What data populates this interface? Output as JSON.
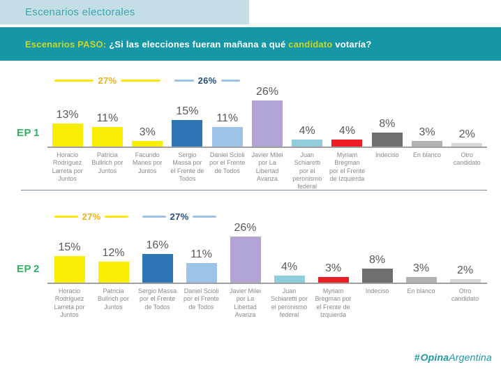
{
  "header": {
    "tab_label": "Escenarios electorales",
    "title_parts": [
      {
        "text": "Escenarios PASO: ",
        "highlight": true
      },
      {
        "text": "¿Si las elecciones fueran mañana a qué ",
        "highlight": false
      },
      {
        "text": "candidato",
        "highlight": true
      },
      {
        "text": " votaría?",
        "highlight": false
      }
    ]
  },
  "footer": {
    "logo_hash": "#",
    "logo_bold": "Opina",
    "logo_light": "Argentina"
  },
  "colors": {
    "tab_bg": "#c3dfe5",
    "tab_text": "#3ea6b3",
    "title_bg": "#1697a6",
    "title_text": "#ffffff",
    "title_highlight": "#c9d626",
    "ep_label": "#2fb261",
    "value_label": "#595959",
    "category_label": "#8a8a8a",
    "axis": "#a0a0a0",
    "separator": "#7d8a96",
    "logo": "#1b98a6"
  },
  "chart_data": [
    {
      "type": "bar",
      "scenario_prefix": "EP",
      "scenario_number": "1",
      "unit": "%",
      "ylim": [
        0,
        30
      ],
      "grid": false,
      "categories": [
        "Horacio Rodríguez Larreta por Juntos",
        "Patricia Bullrich por Juntos",
        "Facundo Manes por Juntos",
        "Sergio Massa por el Frente de Todos",
        "Daniel Scioli por el Frente de Todos",
        "Javier Milei por La Libertad Avanza",
        "Juan Schiaretti por el peronismo federal",
        "Myriam Bregman por el Frente de Izquierda",
        "Indeciso",
        "En blanco",
        "Otro candidato"
      ],
      "values": [
        13,
        11,
        3,
        15,
        11,
        26,
        4,
        4,
        8,
        3,
        2
      ],
      "bar_colors": [
        "#f9ee06",
        "#f9ee06",
        "#f9ee06",
        "#2e75b6",
        "#9dc3e6",
        "#b2a5d5",
        "#90cdde",
        "#ec1d25",
        "#6e6e6e",
        "#b2b2b2",
        "#d8d8d8"
      ],
      "brackets": [
        {
          "label": "27%",
          "from_index": 0,
          "to_index": 2,
          "line_color": "#ffe706",
          "text_color": "#e8b219"
        },
        {
          "label": "26%",
          "from_index": 3,
          "to_index": 4,
          "line_color": "#9dc3e6",
          "text_color": "#24507e"
        }
      ]
    },
    {
      "type": "bar",
      "scenario_prefix": "EP",
      "scenario_number": "2",
      "unit": "%",
      "ylim": [
        0,
        30
      ],
      "grid": false,
      "categories": [
        "Horacio Rodríguez Larreta por Juntos",
        "Patricia Bullrich por Juntos",
        "Sergio Massa por el Frente de Todos",
        "Daniel Scioli por el Frente de Todos",
        "Javier Milei por La Libertad Avanza",
        "Juan Schiaretti por el peronismo federal",
        "Myriam Bregman por el Frente de Izquierda",
        "Indeciso",
        "En blanco",
        "Otro candidato"
      ],
      "values": [
        15,
        12,
        16,
        11,
        26,
        4,
        3,
        8,
        3,
        2
      ],
      "bar_colors": [
        "#f9ee06",
        "#f9ee06",
        "#2e75b6",
        "#9dc3e6",
        "#b2a5d5",
        "#90cdde",
        "#ec1d25",
        "#6e6e6e",
        "#b2b2b2",
        "#d8d8d8"
      ],
      "brackets": [
        {
          "label": "27%",
          "from_index": 0,
          "to_index": 1,
          "line_color": "#ffe706",
          "text_color": "#e8b219"
        },
        {
          "label": "27%",
          "from_index": 2,
          "to_index": 3,
          "line_color": "#9dc3e6",
          "text_color": "#24507e"
        }
      ]
    }
  ]
}
